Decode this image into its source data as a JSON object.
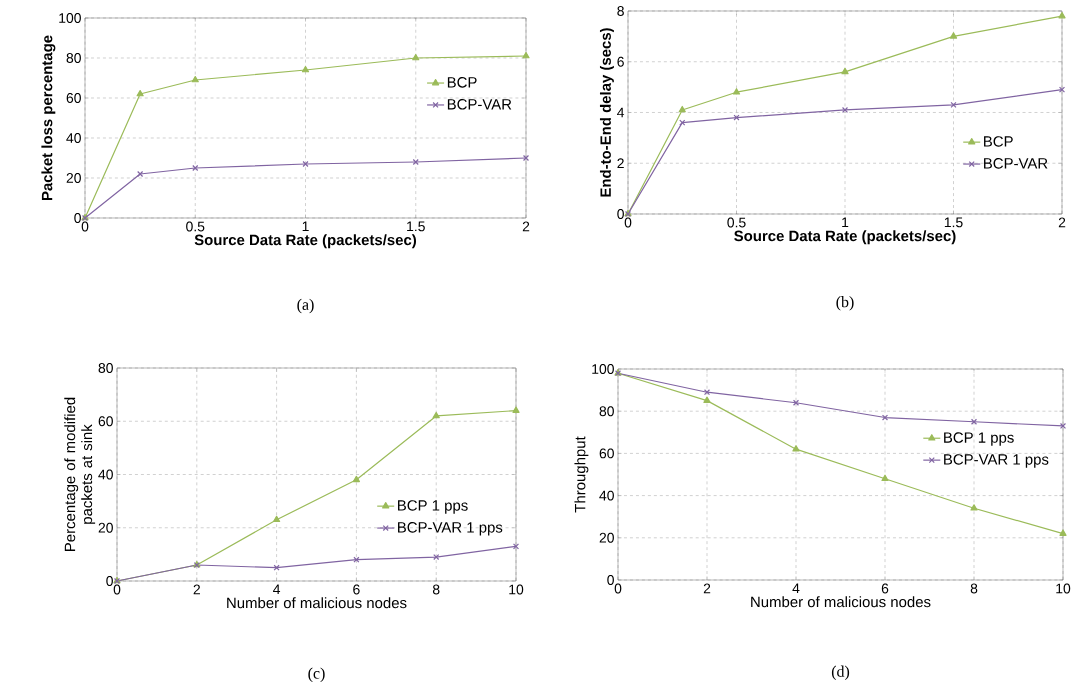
{
  "chart_data": [
    {
      "type": "line",
      "xlabel": "Source Data Rate (packets/sec)",
      "ylabel": "Packet loss percentage",
      "annotations": [
        "(a)"
      ],
      "x": [
        0,
        0.25,
        0.5,
        1,
        1.5,
        2
      ],
      "xlim": [
        0,
        2
      ],
      "ylim": [
        0,
        100
      ],
      "xticks": [
        0,
        0.5,
        1,
        1.5,
        2
      ],
      "yticks": [
        0,
        20,
        40,
        60,
        80,
        100
      ],
      "grid": true,
      "legend": "right",
      "series": [
        {
          "name": "BCP",
          "color": "#9bbb59",
          "marker": "triangle",
          "values": [
            0,
            62,
            69,
            74,
            80,
            81
          ]
        },
        {
          "name": "BCP-VAR",
          "color": "#8064a2",
          "marker": "cross",
          "values": [
            0,
            22,
            25,
            27,
            28,
            30
          ]
        }
      ]
    },
    {
      "type": "line",
      "xlabel": "Source Data Rate (packets/sec)",
      "ylabel": "End-to-End delay (secs)",
      "annotations": [
        "(b)"
      ],
      "x": [
        0,
        0.25,
        0.5,
        1,
        1.5,
        2
      ],
      "xlim": [
        0,
        2
      ],
      "ylim": [
        0,
        8
      ],
      "xticks": [
        0,
        0.5,
        1,
        1.5,
        2
      ],
      "yticks": [
        0,
        2,
        4,
        6,
        8
      ],
      "grid": true,
      "legend": "bottom right",
      "series": [
        {
          "name": "BCP",
          "color": "#9bbb59",
          "marker": "triangle",
          "values": [
            0,
            4.1,
            4.8,
            5.6,
            7.0,
            7.8
          ]
        },
        {
          "name": "BCP-VAR",
          "color": "#8064a2",
          "marker": "cross",
          "values": [
            0,
            3.6,
            3.8,
            4.1,
            4.3,
            4.9
          ]
        }
      ]
    },
    {
      "type": "line",
      "xlabel": "Number of malicious nodes",
      "ylabel": "Percentage of modified packets at sink",
      "annotations": [
        "(c)"
      ],
      "x": [
        0,
        2,
        4,
        6,
        8,
        10
      ],
      "xlim": [
        0,
        10
      ],
      "ylim": [
        0,
        80
      ],
      "xticks": [
        0,
        2,
        4,
        6,
        8,
        10
      ],
      "yticks": [
        0,
        20,
        40,
        60,
        80
      ],
      "grid": true,
      "legend": "bottom right",
      "series": [
        {
          "name": "BCP 1 pps",
          "color": "#9bbb59",
          "marker": "triangle",
          "values": [
            0,
            6,
            23,
            38,
            62,
            64
          ]
        },
        {
          "name": "BCP-VAR 1 pps",
          "color": "#8064a2",
          "marker": "cross",
          "values": [
            0,
            6,
            5,
            8,
            9,
            13
          ]
        }
      ]
    },
    {
      "type": "line",
      "xlabel": "Number of malicious nodes",
      "ylabel": "Throughput",
      "annotations": [
        "(d)"
      ],
      "x": [
        0,
        2,
        4,
        6,
        8,
        10
      ],
      "xlim": [
        0,
        10
      ],
      "ylim": [
        0,
        100
      ],
      "xticks": [
        0,
        2,
        4,
        6,
        8,
        10
      ],
      "yticks": [
        0,
        20,
        40,
        60,
        80,
        100
      ],
      "grid": true,
      "legend": "right",
      "series": [
        {
          "name": "BCP 1 pps",
          "color": "#9bbb59",
          "marker": "triangle",
          "values": [
            98,
            85,
            62,
            48,
            34,
            22
          ]
        },
        {
          "name": "BCP-VAR 1 pps",
          "color": "#8064a2",
          "marker": "cross",
          "values": [
            98,
            89,
            84,
            77,
            75,
            73
          ]
        }
      ]
    }
  ]
}
